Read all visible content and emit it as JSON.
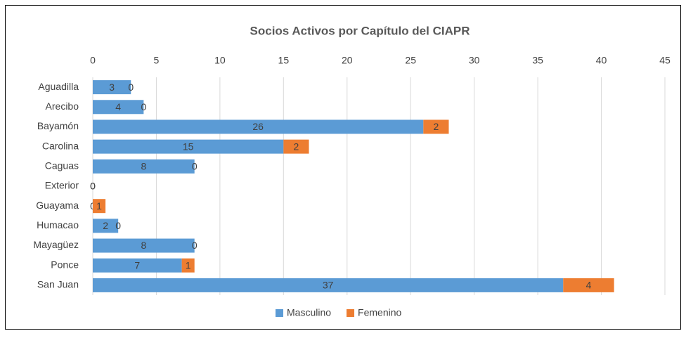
{
  "chart_data": {
    "type": "stacked_barh",
    "title": "Socios Activos por Capítulo del CIAPR",
    "categories": [
      "Aguadilla",
      "Arecibo",
      "Bayamón",
      "Carolina",
      "Caguas",
      "Exterior",
      "Guayama",
      "Humacao",
      "Mayagüez",
      "Ponce",
      "San Juan"
    ],
    "series": [
      {
        "name": "Masculino",
        "color": "#5b9bd5",
        "values": [
          3,
          4,
          26,
          15,
          8,
          0,
          0,
          2,
          8,
          7,
          37
        ]
      },
      {
        "name": "Femenino",
        "color": "#ed7d31",
        "values": [
          0,
          0,
          2,
          2,
          0,
          0,
          1,
          0,
          0,
          1,
          4
        ]
      }
    ],
    "xlim": [
      0,
      45
    ],
    "xticks": [
      0,
      5,
      10,
      15,
      20,
      25,
      30,
      35,
      40,
      45
    ],
    "grid": true,
    "legend": "bottom"
  }
}
